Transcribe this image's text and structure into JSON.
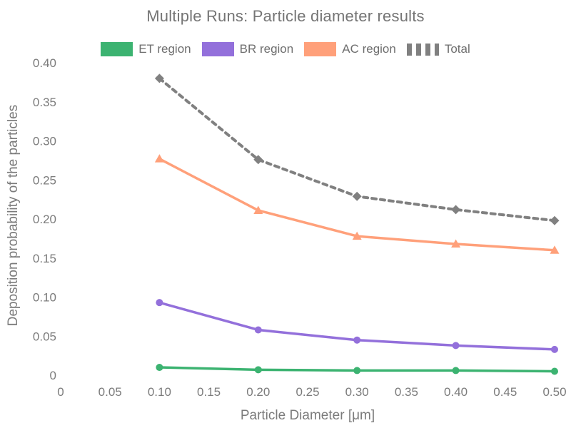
{
  "chart_data": {
    "type": "line",
    "title": "Multiple Runs: Particle diameter results",
    "xlabel": "Particle Diameter [μm]",
    "ylabel": "Deposition probability of the particles",
    "x": [
      0.1,
      0.2,
      0.3,
      0.4,
      0.5
    ],
    "series": [
      {
        "name": "ET region",
        "color": "#3CB371",
        "marker": "circle",
        "dash": "solid",
        "values": [
          0.01,
          0.007,
          0.006,
          0.006,
          0.005
        ]
      },
      {
        "name": "BR region",
        "color": "#9370DB",
        "marker": "circle",
        "dash": "solid",
        "values": [
          0.093,
          0.058,
          0.045,
          0.038,
          0.033
        ]
      },
      {
        "name": "AC region",
        "color": "#FFA07A",
        "marker": "triangle-up",
        "dash": "solid",
        "values": [
          0.277,
          0.211,
          0.178,
          0.168,
          0.16
        ]
      },
      {
        "name": "Total",
        "color": "#808080",
        "marker": "diamond",
        "dash": "dashed",
        "values": [
          0.38,
          0.276,
          0.229,
          0.212,
          0.198
        ]
      }
    ],
    "xlim": [
      0,
      0.5
    ],
    "ylim": [
      0,
      0.4
    ],
    "xticks": {
      "values": [
        0,
        0.05,
        0.1,
        0.15,
        0.2,
        0.25,
        0.3,
        0.35,
        0.4,
        0.45,
        0.5
      ],
      "labels": [
        "0",
        "0.05",
        "0.10",
        "0.15",
        "0.20",
        "0.25",
        "0.30",
        "0.35",
        "0.40",
        "0.45",
        "0.50"
      ]
    },
    "yticks": {
      "values": [
        0,
        0.05,
        0.1,
        0.15,
        0.2,
        0.25,
        0.3,
        0.35,
        0.4
      ],
      "labels": [
        "0",
        "0.05",
        "0.10",
        "0.15",
        "0.20",
        "0.25",
        "0.30",
        "0.35",
        "0.40"
      ]
    },
    "grid": false,
    "legend_position": "top-center",
    "text_color": "#7b7b7b",
    "background": "#ffffff"
  }
}
